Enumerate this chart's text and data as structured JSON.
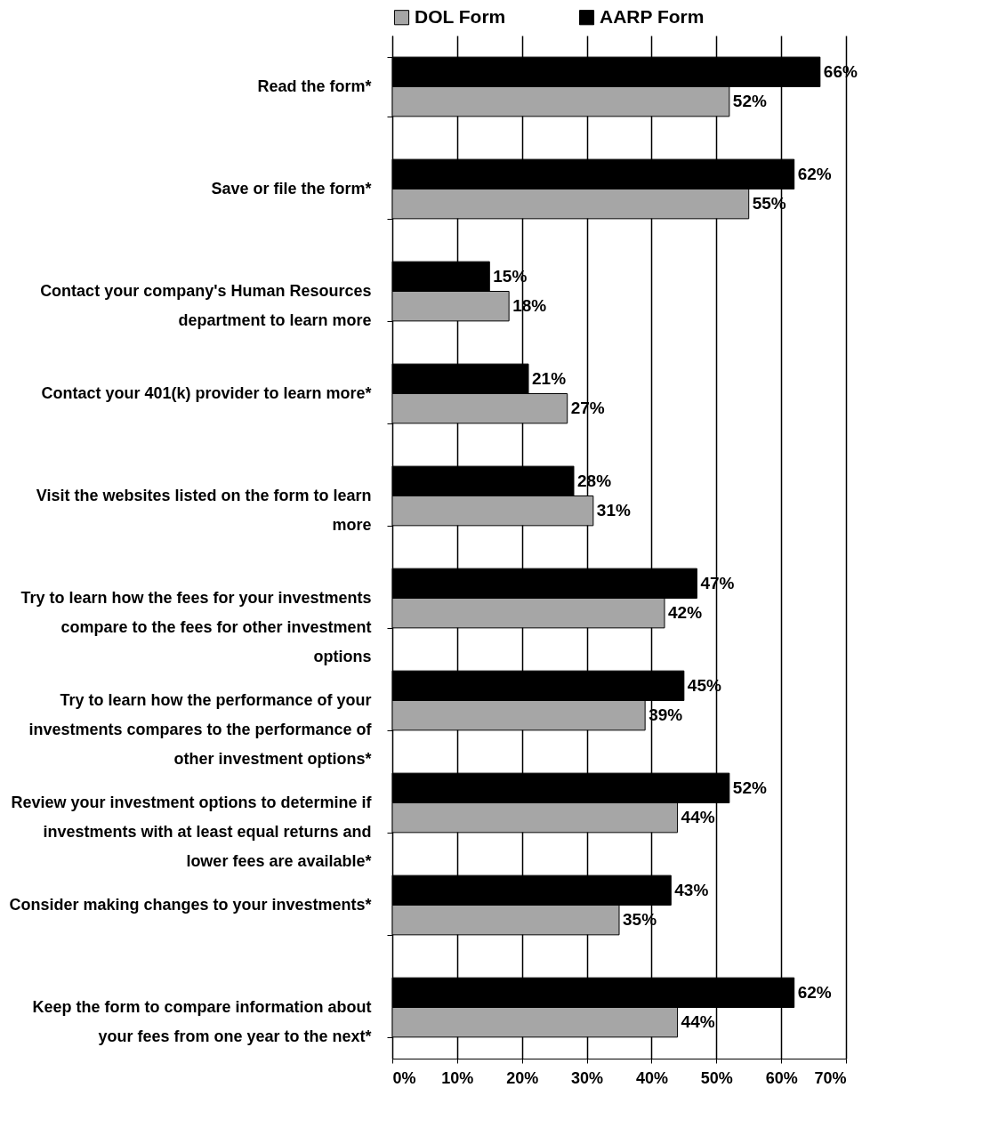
{
  "chart_data": {
    "type": "bar",
    "orientation": "horizontal",
    "categories": [
      "Read the form*",
      "Save or file the form*",
      "Contact your company's Human Resources department to learn more",
      "Contact your 401(k) provider to learn more*",
      "Visit the websites listed on the form to learn more",
      "Try to learn how the fees for your investments compare to the fees for other investment options",
      "Try to learn how the performance of your investments compares to the performance of other investment options*",
      "Review your investment options to determine if investments with at least equal returns and lower fees are available*",
      "Consider making changes to your investments*",
      "Keep the form to compare information about your fees from one year to the next*"
    ],
    "series": [
      {
        "name": "DOL Form",
        "color": "#a6a6a6",
        "values": [
          52,
          55,
          18,
          27,
          31,
          42,
          39,
          44,
          35,
          44
        ],
        "value_labels": [
          "52%",
          "55%",
          "18%",
          "27%",
          "31%",
          "42%",
          "39%",
          "44%",
          "35%",
          "44%"
        ]
      },
      {
        "name": "AARP Form",
        "color": "#000000",
        "values": [
          66,
          62,
          15,
          21,
          28,
          47,
          45,
          52,
          43,
          62
        ],
        "value_labels": [
          "66%",
          "62%",
          "15%",
          "21%",
          "28%",
          "47%",
          "45%",
          "52%",
          "43%",
          "62%"
        ]
      }
    ],
    "xlim": [
      0,
      70
    ],
    "xticks": [
      {
        "value": 0,
        "label": "0%"
      },
      {
        "value": 10,
        "label": "10%"
      },
      {
        "value": 20,
        "label": "20%"
      },
      {
        "value": 30,
        "label": "30%"
      },
      {
        "value": 40,
        "label": "40%"
      },
      {
        "value": 50,
        "label": "50%"
      },
      {
        "value": 60,
        "label": "60%"
      },
      {
        "value": 70,
        "label": "70%"
      }
    ],
    "grid": "x",
    "legend": "top"
  }
}
